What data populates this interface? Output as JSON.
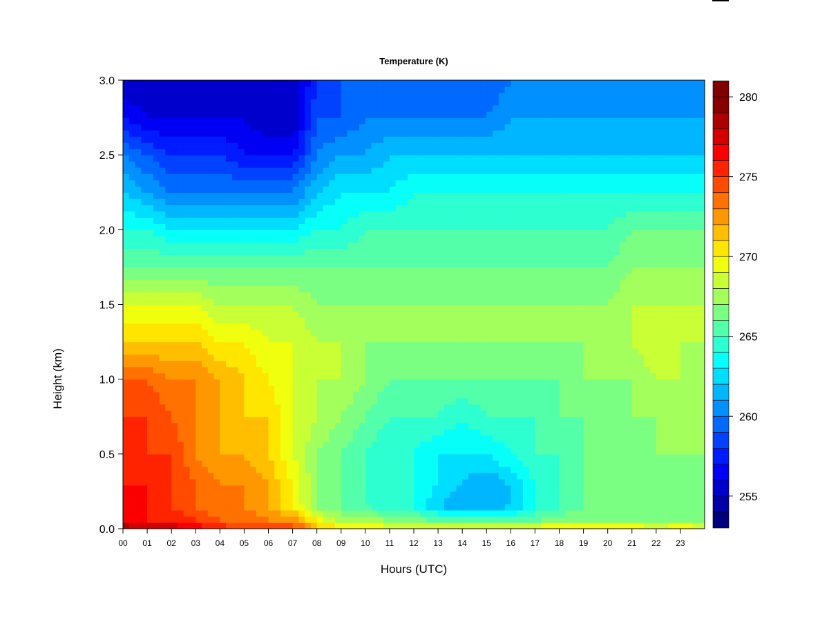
{
  "chart_data": {
    "type": "heatmap",
    "title": "Temperature (K)",
    "xlabel": "Hours (UTC)",
    "ylabel": "Height (km)",
    "xlim": [
      0,
      24
    ],
    "ylim": [
      0,
      3
    ],
    "x_ticks": [
      0,
      1,
      2,
      3,
      4,
      5,
      6,
      7,
      8,
      9,
      10,
      11,
      12,
      13,
      14,
      15,
      16,
      17,
      18,
      19,
      20,
      21,
      22,
      23
    ],
    "x_tick_labels": [
      "00",
      "01",
      "02",
      "03",
      "04",
      "05",
      "06",
      "07",
      "08",
      "09",
      "10",
      "11",
      "12",
      "13",
      "14",
      "15",
      "16",
      "17",
      "18",
      "19",
      "20",
      "21",
      "22",
      "23"
    ],
    "y_ticks": [
      0,
      0.5,
      1,
      1.5,
      2,
      2.5,
      3
    ],
    "y_tick_labels": [
      "0.0",
      "0.5",
      "1.0",
      "1.5",
      "2.0",
      "2.5",
      "3.0"
    ],
    "colorbar": {
      "range": [
        253,
        281
      ],
      "levels": [
        253,
        254,
        255,
        256,
        257,
        258,
        259,
        260,
        261,
        262,
        263,
        264,
        265,
        266,
        267,
        268,
        269,
        270,
        271,
        272,
        273,
        274,
        275,
        276,
        277,
        278,
        279,
        280,
        281
      ],
      "tick_values": [
        255,
        260,
        265,
        270,
        275,
        280
      ],
      "tick_labels": [
        "255",
        "260",
        "265",
        "270",
        "275",
        "280"
      ],
      "colors": [
        "#00007f",
        "#0000a6",
        "#0000cd",
        "#0000f4",
        "#001bff",
        "#0042ff",
        "#0069ff",
        "#0090ff",
        "#00b7ff",
        "#00deff",
        "#06fff8",
        "#2dffd1",
        "#54ffaa",
        "#7bff83",
        "#a2ff5c",
        "#c9ff35",
        "#f0ff0e",
        "#ffe600",
        "#ffbf00",
        "#ff9800",
        "#ff7100",
        "#ff4a00",
        "#ff2300",
        "#fb0000",
        "#d40000",
        "#ad0000",
        "#860000",
        "#7f0000"
      ]
    },
    "temperature_grid": {
      "x_hours": [
        0,
        1,
        2,
        3,
        4,
        5,
        6,
        7,
        8,
        9,
        10,
        11,
        12,
        13,
        14,
        15,
        16,
        17,
        18,
        19,
        20,
        21,
        22,
        23,
        24
      ],
      "z_km": [
        0,
        0.05,
        0.15,
        0.3,
        0.5,
        0.75,
        1.0,
        1.25,
        1.5,
        1.75,
        2.0,
        2.25,
        2.5,
        2.75,
        3.0
      ],
      "values_K": [
        [
          279,
          278,
          278,
          277,
          276,
          275,
          275,
          275,
          272,
          271,
          271,
          270,
          270,
          270,
          270,
          270,
          270,
          271,
          271,
          271,
          271,
          271,
          270,
          271,
          270
        ],
        [
          277,
          276,
          276,
          275,
          274,
          274,
          273,
          273,
          270,
          268,
          268,
          267,
          267,
          266,
          266,
          266,
          266,
          266,
          267,
          267,
          267,
          267,
          267,
          267,
          267
        ],
        [
          276,
          276,
          275,
          274,
          273,
          273,
          272,
          270,
          267,
          266,
          265,
          264,
          264,
          262,
          261,
          261,
          262,
          264,
          265,
          266,
          266,
          266,
          266,
          266,
          266
        ],
        [
          276,
          276,
          275,
          274,
          273,
          273,
          272,
          270,
          267,
          266,
          265,
          264,
          264,
          263,
          262,
          261,
          262,
          264,
          265,
          266,
          266,
          266,
          266,
          267,
          266
        ],
        [
          276,
          275,
          275,
          273,
          272,
          272,
          271,
          269,
          267,
          266,
          265,
          264,
          264,
          263,
          263,
          263,
          264,
          265,
          265,
          266,
          266,
          266,
          267,
          267,
          267
        ],
        [
          275,
          275,
          274,
          273,
          272,
          271,
          271,
          269,
          268,
          267,
          266,
          265,
          265,
          265,
          264,
          265,
          265,
          265,
          266,
          266,
          266,
          267,
          267,
          267,
          267
        ],
        [
          274,
          274,
          273,
          273,
          272,
          271,
          270,
          269,
          268,
          268,
          267,
          266,
          266,
          266,
          266,
          266,
          266,
          266,
          266,
          267,
          267,
          267,
          268,
          268,
          267
        ],
        [
          271,
          271,
          271,
          271,
          270,
          270,
          269,
          269,
          268,
          268,
          267,
          267,
          267,
          267,
          267,
          267,
          267,
          267,
          267,
          267,
          267,
          268,
          269,
          268,
          268
        ],
        [
          269,
          269,
          269,
          269,
          268,
          268,
          268,
          268,
          267,
          267,
          267,
          267,
          267,
          267,
          267,
          267,
          267,
          267,
          267,
          267,
          267,
          268,
          268,
          268,
          268
        ],
        [
          266,
          266,
          266,
          266,
          266,
          266,
          266,
          266,
          266,
          266,
          266,
          266,
          266,
          266,
          266,
          266,
          266,
          266,
          266,
          266,
          266,
          267,
          267,
          267,
          267
        ],
        [
          264,
          264,
          263,
          263,
          263,
          263,
          263,
          263,
          264,
          264,
          265,
          265,
          265,
          265,
          265,
          265,
          265,
          265,
          265,
          265,
          265,
          266,
          266,
          266,
          266
        ],
        [
          262,
          261,
          260,
          260,
          260,
          260,
          260,
          260,
          262,
          263,
          263,
          263,
          264,
          264,
          264,
          264,
          264,
          264,
          264,
          264,
          264,
          264,
          264,
          264,
          264
        ],
        [
          260,
          259,
          258,
          258,
          258,
          257,
          257,
          257,
          260,
          261,
          261,
          262,
          262,
          262,
          262,
          262,
          262,
          262,
          262,
          262,
          262,
          262,
          262,
          262,
          262
        ],
        [
          257,
          256,
          256,
          256,
          256,
          256,
          255,
          255,
          259,
          259,
          260,
          260,
          260,
          260,
          260,
          260,
          261,
          261,
          261,
          261,
          261,
          261,
          261,
          261,
          261
        ],
        [
          255,
          255,
          255,
          255,
          255,
          255,
          255,
          255,
          258,
          259,
          259,
          259,
          259,
          259,
          259,
          259,
          260,
          260,
          260,
          260,
          260,
          260,
          260,
          260,
          260
        ]
      ]
    }
  }
}
